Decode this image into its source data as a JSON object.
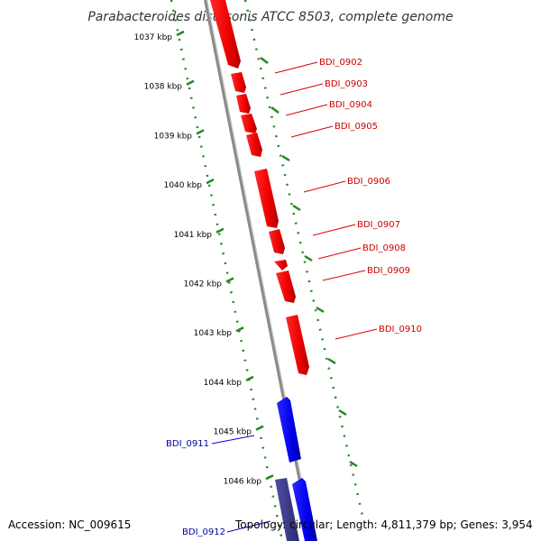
{
  "title": "Parabacteroides distasonis ATCC 8503, complete genome",
  "scale_ticks": [
    "1037 kbp",
    "1038 kbp",
    "1039 kbp",
    "1040 kbp",
    "1041 kbp",
    "1042 kbp",
    "1043 kbp",
    "1044 kbp",
    "1045 kbp",
    "1046 kbp"
  ],
  "genes": [
    {
      "label": "BDI_0902",
      "strand": "forward",
      "color": "#dd0000"
    },
    {
      "label": "BDI_0903",
      "strand": "forward",
      "color": "#dd0000"
    },
    {
      "label": "BDI_0904",
      "strand": "forward",
      "color": "#dd0000"
    },
    {
      "label": "BDI_0905",
      "strand": "forward",
      "color": "#dd0000"
    },
    {
      "label": "BDI_0906",
      "strand": "forward",
      "color": "#dd0000"
    },
    {
      "label": "BDI_0907",
      "strand": "forward",
      "color": "#dd0000"
    },
    {
      "label": "BDI_0908",
      "strand": "forward",
      "color": "#dd0000"
    },
    {
      "label": "BDI_0909",
      "strand": "forward",
      "color": "#dd0000"
    },
    {
      "label": "BDI_0910",
      "strand": "forward",
      "color": "#dd0000"
    },
    {
      "label": "BDI_0911",
      "strand": "reverse",
      "color": "#0000cc"
    },
    {
      "label": "BDI_0912",
      "strand": "reverse",
      "color": "#0000cc"
    }
  ],
  "colors": {
    "forward_gene": "#ff0000",
    "reverse_gene": "#0000ee",
    "forward_label": "#cc0000",
    "reverse_label": "#0000aa",
    "backbone": "#888888",
    "scale_dots": "#228822"
  },
  "footer": {
    "accession": "Accession: NC_009615",
    "summary": "Topology: circular; Length: 4,811,379 bp; Genes: 3,954"
  }
}
